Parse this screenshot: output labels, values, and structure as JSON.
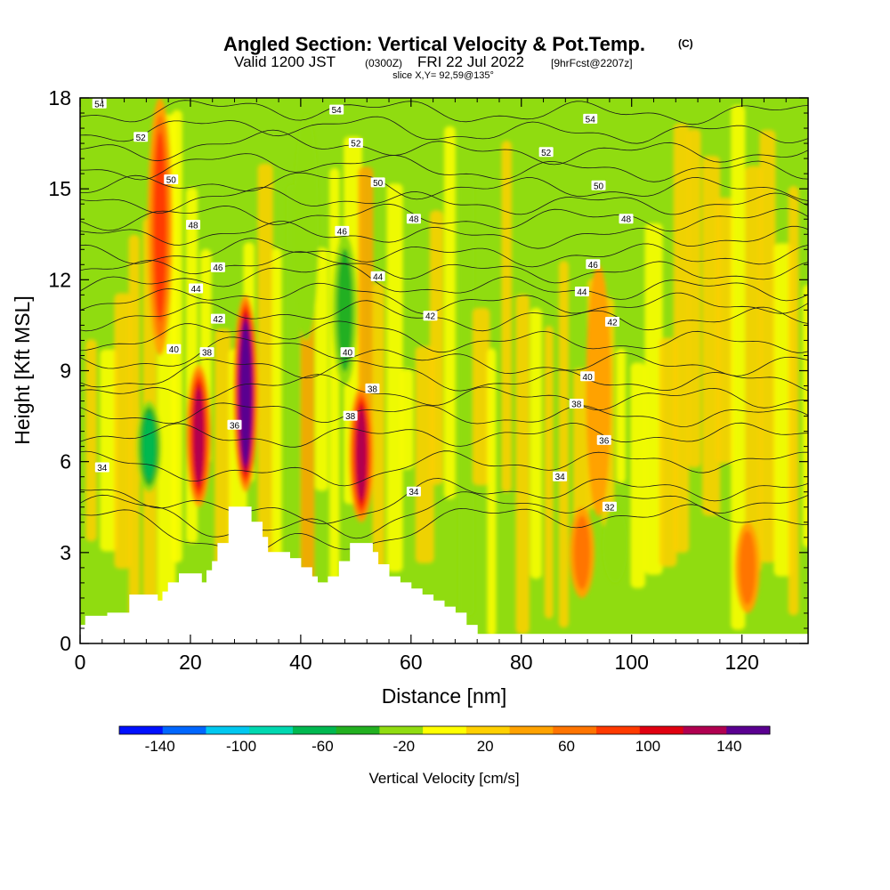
{
  "header": {
    "title": "Angled Section: Vertical Velocity & Pot.Temp.",
    "title_tag": "(C)",
    "valid_prefix": "Valid 1200 JST",
    "valid_utc": "(0300Z)",
    "valid_date": "FRI 22 Jul 2022",
    "forecast_tag": "[9hrFcst@2207z]",
    "slice": "slice X,Y= 92,59@135°"
  },
  "chart_data": {
    "type": "heatmap",
    "title": "Angled Section: Vertical Velocity & Pot.Temp.",
    "xlabel": "Distance [nm]",
    "ylabel": "Height [Kft MSL]",
    "xlim": [
      0,
      132
    ],
    "ylim": [
      0,
      18
    ],
    "x_ticks": [
      0,
      20,
      40,
      60,
      80,
      100,
      120
    ],
    "y_ticks": [
      0,
      3,
      6,
      9,
      12,
      15,
      18
    ],
    "colorbar": {
      "label": "Vertical Velocity [cm/s]",
      "tick_values": [
        -140,
        -100,
        -60,
        -20,
        20,
        60,
        100,
        140
      ],
      "bins": [
        -160,
        -140,
        -120,
        -100,
        -80,
        -60,
        -40,
        -20,
        0,
        20,
        40,
        60,
        80,
        100,
        120,
        140,
        160
      ],
      "colors": [
        "#0010ff",
        "#0066ff",
        "#00c8f0",
        "#00d8b0",
        "#00b850",
        "#22b020",
        "#90dc10",
        "#ffff00",
        "#ffd000",
        "#ffa200",
        "#ff7400",
        "#ff3a00",
        "#e00010",
        "#b00050",
        "#5a0090"
      ]
    },
    "updrafts": [
      {
        "x": 14.5,
        "y0": 9.5,
        "y1": 18.0,
        "peak": 60
      },
      {
        "x": 21.5,
        "y0": 4.5,
        "y1": 9.2,
        "peak": 110
      },
      {
        "x": 30.0,
        "y0": 5.0,
        "y1": 11.5,
        "peak": 160
      },
      {
        "x": 51.0,
        "y0": 4.0,
        "y1": 8.5,
        "peak": 115
      },
      {
        "x": 94.0,
        "y0": 4.2,
        "y1": 12.5,
        "peak": 20
      },
      {
        "x": 91.0,
        "y0": 1.5,
        "y1": 4.5,
        "peak": 40
      },
      {
        "x": 121.0,
        "y0": 1.0,
        "y1": 4.0,
        "peak": 40
      }
    ],
    "downdrafts": [
      {
        "x": 12.5,
        "y0": 5.0,
        "y1": 8.0,
        "peak": -60
      },
      {
        "x": 41.0,
        "y0": 10.0,
        "y1": 17.5,
        "peak": -30
      },
      {
        "x": 48.0,
        "y0": 8.5,
        "y1": 13.5,
        "peak": -50
      },
      {
        "x": 97.0,
        "y0": 2.0,
        "y1": 4.5,
        "peak": -30
      }
    ],
    "theta_isentropes": [
      {
        "value": 32,
        "y_plain": 4.2,
        "y_mountain": 3.0
      },
      {
        "value": 34,
        "y_plain": 5.1,
        "y_mountain": 4.1
      },
      {
        "value": 36,
        "y_plain": 6.9,
        "y_mountain": 6.8
      },
      {
        "value": 38,
        "y_plain": 8.1,
        "y_mountain": 8.6
      },
      {
        "value": 40,
        "y_plain": 9.2,
        "y_mountain": 9.9
      },
      {
        "value": 42,
        "y_plain": 10.7,
        "y_mountain": 11.0
      },
      {
        "value": 44,
        "y_plain": 11.7,
        "y_mountain": 12.3
      },
      {
        "value": 46,
        "y_plain": 12.8,
        "y_mountain": 13.0
      },
      {
        "value": 48,
        "y_plain": 14.0,
        "y_mountain": 14.2
      },
      {
        "value": 50,
        "y_plain": 15.0,
        "y_mountain": 15.3
      },
      {
        "value": 52,
        "y_plain": 16.2,
        "y_mountain": 16.6
      },
      {
        "value": 54,
        "y_plain": 17.5,
        "y_mountain": 17.7
      }
    ],
    "contour_labels": [
      {
        "text": "54",
        "x": 3.5,
        "y": 17.8
      },
      {
        "text": "52",
        "x": 11,
        "y": 16.7
      },
      {
        "text": "50",
        "x": 16.5,
        "y": 15.3
      },
      {
        "text": "48",
        "x": 20.5,
        "y": 13.8
      },
      {
        "text": "46",
        "x": 25,
        "y": 12.4
      },
      {
        "text": "44",
        "x": 21,
        "y": 11.7
      },
      {
        "text": "42",
        "x": 25,
        "y": 10.7
      },
      {
        "text": "40",
        "x": 17,
        "y": 9.7
      },
      {
        "text": "38",
        "x": 23,
        "y": 9.6
      },
      {
        "text": "36",
        "x": 28,
        "y": 7.2
      },
      {
        "text": "34",
        "x": 4,
        "y": 5.8
      },
      {
        "text": "54",
        "x": 46.5,
        "y": 17.6
      },
      {
        "text": "52",
        "x": 50,
        "y": 16.5
      },
      {
        "text": "50",
        "x": 54,
        "y": 15.2
      },
      {
        "text": "48",
        "x": 60.5,
        "y": 14.0
      },
      {
        "text": "46",
        "x": 47.5,
        "y": 13.6
      },
      {
        "text": "44",
        "x": 54,
        "y": 12.1
      },
      {
        "text": "42",
        "x": 63.5,
        "y": 10.8
      },
      {
        "text": "40",
        "x": 48.5,
        "y": 9.6
      },
      {
        "text": "38",
        "x": 53,
        "y": 8.4
      },
      {
        "text": "38",
        "x": 49,
        "y": 7.5
      },
      {
        "text": "34",
        "x": 60.5,
        "y": 5.0
      },
      {
        "text": "54",
        "x": 92.5,
        "y": 17.3
      },
      {
        "text": "52",
        "x": 84.5,
        "y": 16.2
      },
      {
        "text": "50",
        "x": 94,
        "y": 15.1
      },
      {
        "text": "48",
        "x": 99,
        "y": 14.0
      },
      {
        "text": "46",
        "x": 93,
        "y": 12.5
      },
      {
        "text": "44",
        "x": 91,
        "y": 11.6
      },
      {
        "text": "42",
        "x": 96.5,
        "y": 10.6
      },
      {
        "text": "40",
        "x": 92,
        "y": 8.8
      },
      {
        "text": "38",
        "x": 90,
        "y": 7.9
      },
      {
        "text": "36",
        "x": 95,
        "y": 6.7
      },
      {
        "text": "34",
        "x": 87,
        "y": 5.5
      },
      {
        "text": "32",
        "x": 96,
        "y": 4.5
      }
    ],
    "terrain_steps": [
      [
        0,
        0.6
      ],
      [
        1,
        0.9
      ],
      [
        5,
        1.0
      ],
      [
        9,
        1.6
      ],
      [
        13,
        1.6
      ],
      [
        14,
        1.4
      ],
      [
        15,
        1.7
      ],
      [
        16,
        2.0
      ],
      [
        18,
        2.3
      ],
      [
        21,
        2.3
      ],
      [
        22,
        2.0
      ],
      [
        23,
        2.4
      ],
      [
        24,
        2.7
      ],
      [
        25,
        3.3
      ],
      [
        27,
        4.5
      ],
      [
        30,
        4.5
      ],
      [
        31,
        4.0
      ],
      [
        33,
        3.5
      ],
      [
        34,
        3.0
      ],
      [
        36,
        3.0
      ],
      [
        38,
        2.8
      ],
      [
        40,
        2.5
      ],
      [
        42,
        2.2
      ],
      [
        43,
        2.0
      ],
      [
        45,
        2.2
      ],
      [
        47,
        2.7
      ],
      [
        49,
        3.3
      ],
      [
        52,
        3.3
      ],
      [
        53,
        3.0
      ],
      [
        54,
        2.6
      ],
      [
        56,
        2.2
      ],
      [
        58,
        2.0
      ],
      [
        60,
        1.8
      ],
      [
        62,
        1.6
      ],
      [
        64,
        1.4
      ],
      [
        66,
        1.2
      ],
      [
        68,
        1.0
      ],
      [
        70,
        0.6
      ],
      [
        72,
        0.3
      ],
      [
        132,
        0.3
      ]
    ]
  }
}
